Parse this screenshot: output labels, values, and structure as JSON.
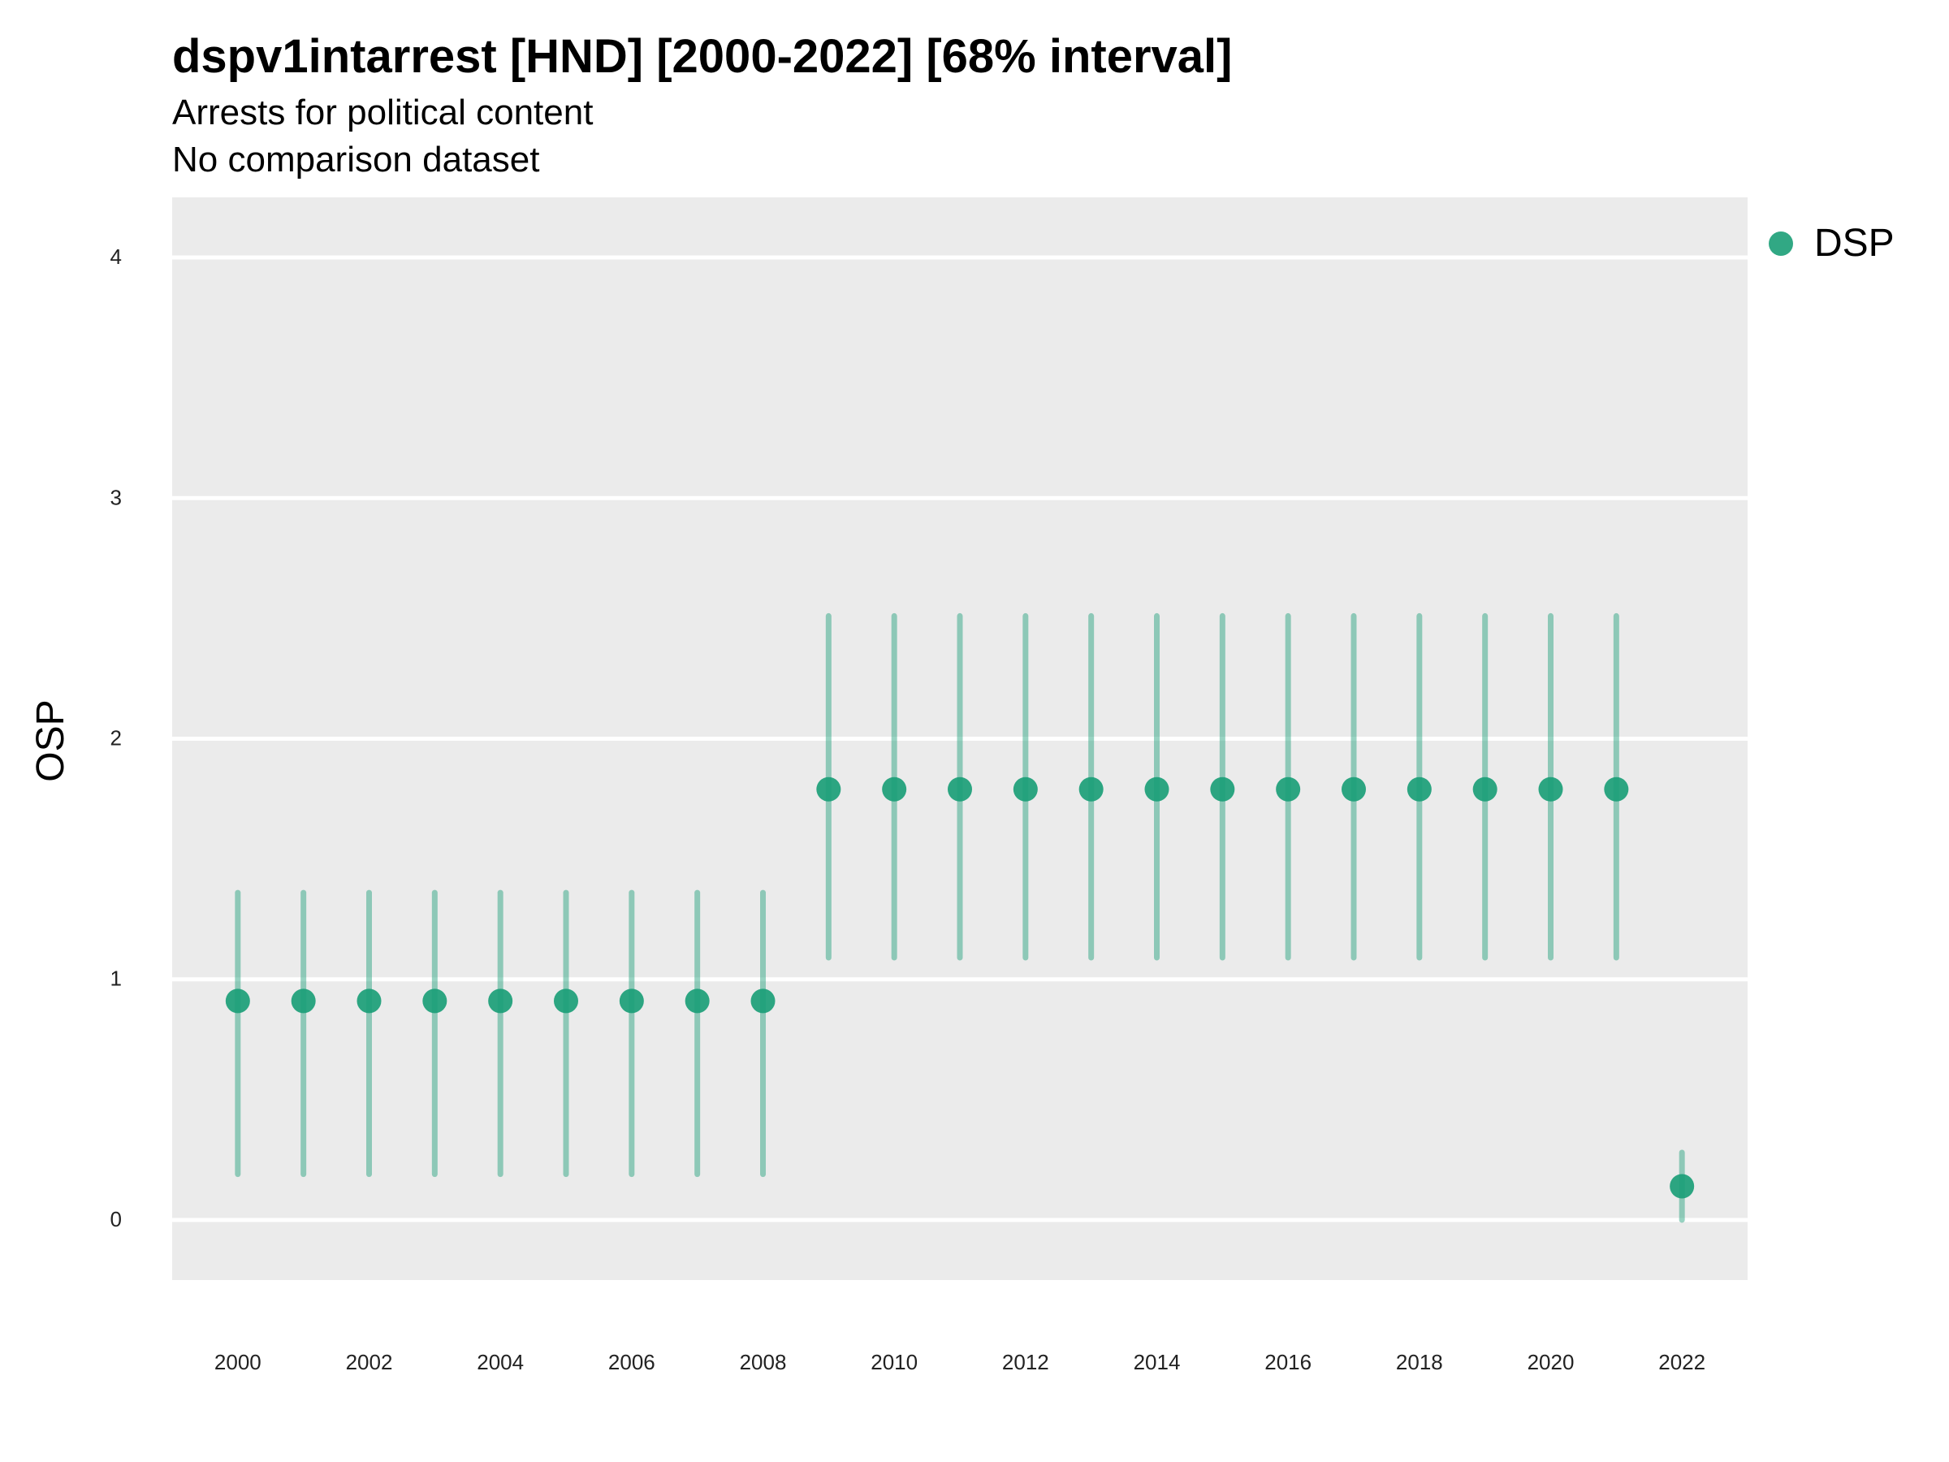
{
  "chart_data": {
    "type": "scatter",
    "title": "dspv1intarrest [HND] [2000-2022] [68% interval]",
    "subtitle": "Arrests for political content",
    "subtitle2": "No comparison dataset",
    "xlabel": "",
    "ylabel": "OSP",
    "x_ticks": [
      "2000",
      "2002",
      "2004",
      "2006",
      "2008",
      "2010",
      "2012",
      "2014",
      "2016",
      "2018",
      "2020",
      "2022"
    ],
    "y_ticks": [
      "0",
      "1",
      "2",
      "3",
      "4"
    ],
    "xlim": [
      1999,
      2023
    ],
    "ylim": [
      -0.25,
      4.25
    ],
    "grid": true,
    "legend_position": "top-right",
    "colors": {
      "series": "#1b9e77",
      "panel": "#ebebeb",
      "grid": "#ffffff"
    },
    "series": [
      {
        "name": "DSP",
        "x": [
          2000,
          2001,
          2002,
          2003,
          2004,
          2005,
          2006,
          2007,
          2008,
          2009,
          2010,
          2011,
          2012,
          2013,
          2014,
          2015,
          2016,
          2017,
          2018,
          2019,
          2020,
          2021,
          2022
        ],
        "y": [
          0.91,
          0.91,
          0.91,
          0.91,
          0.91,
          0.91,
          0.91,
          0.91,
          0.91,
          1.79,
          1.79,
          1.79,
          1.79,
          1.79,
          1.79,
          1.79,
          1.79,
          1.79,
          1.79,
          1.79,
          1.79,
          1.79,
          0.14
        ],
        "lower": [
          0.19,
          0.19,
          0.19,
          0.19,
          0.19,
          0.19,
          0.19,
          0.19,
          0.19,
          1.09,
          1.09,
          1.09,
          1.09,
          1.09,
          1.09,
          1.09,
          1.09,
          1.09,
          1.09,
          1.09,
          1.09,
          1.09,
          0.0
        ],
        "upper": [
          1.36,
          1.36,
          1.36,
          1.36,
          1.36,
          1.36,
          1.36,
          1.36,
          1.36,
          2.51,
          2.51,
          2.51,
          2.51,
          2.51,
          2.51,
          2.51,
          2.51,
          2.51,
          2.51,
          2.51,
          2.51,
          2.51,
          0.28
        ]
      }
    ]
  }
}
